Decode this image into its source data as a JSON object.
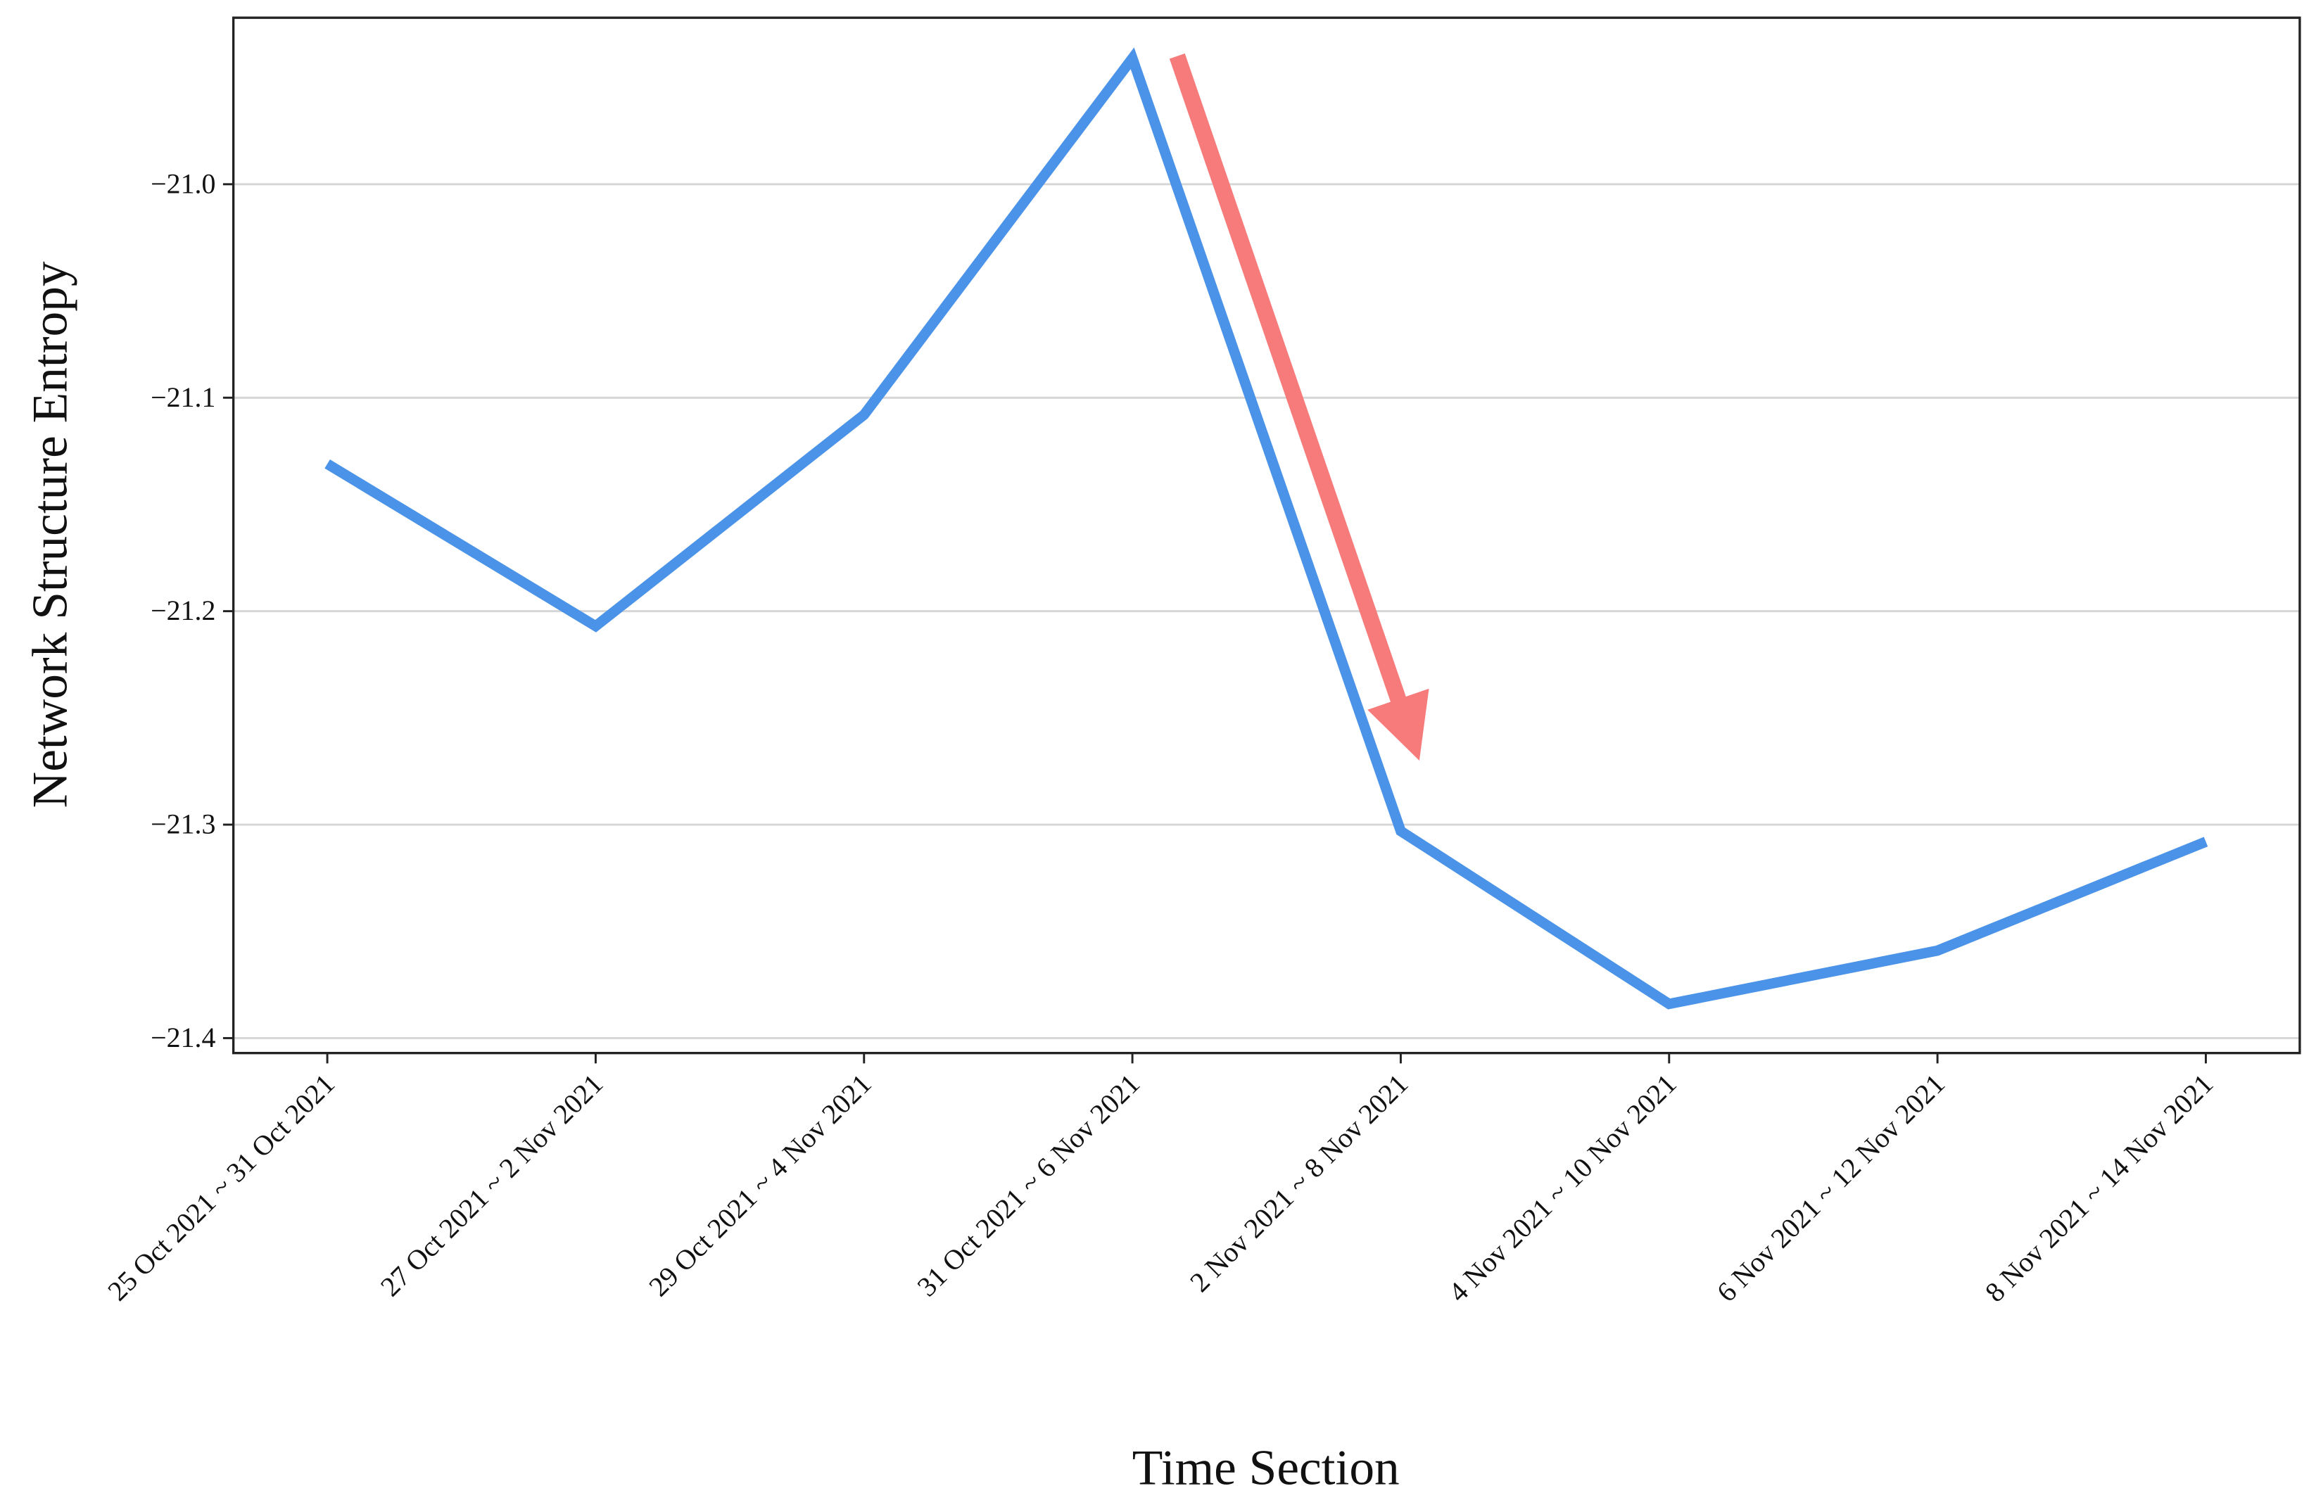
{
  "chart_data": {
    "type": "line",
    "x_label": "Time Section",
    "y_label": "Network Structure Entropy",
    "categories": [
      "25 Oct 2021 ~ 31 Oct 2021",
      "27 Oct 2021 ~ 2 Nov 2021",
      "29 Oct 2021 ~ 4 Nov 2021",
      "31 Oct 2021 ~ 6 Nov 2021",
      "2 Nov 2021 ~ 8 Nov 2021",
      "4 Nov 2021 ~ 10 Nov 2021",
      "6 Nov 2021 ~ 12 Nov 2021",
      "8 Nov 2021 ~ 14 Nov 2021"
    ],
    "series": [
      {
        "name": "Network Structure Entropy",
        "color": "#4a93e8",
        "values": [
          -21.131,
          -21.207,
          -21.108,
          -20.941,
          -21.303,
          -21.384,
          -21.359,
          -21.308
        ]
      }
    ],
    "ylim": [
      -21.407,
      -20.922
    ],
    "yticks": [
      {
        "value": -21.0,
        "label": "−21.0"
      },
      {
        "value": -21.1,
        "label": "−21.1"
      },
      {
        "value": -21.2,
        "label": "−21.2"
      },
      {
        "value": -21.3,
        "label": "−21.3"
      },
      {
        "value": -21.4,
        "label": "−21.4"
      }
    ],
    "grid": true
  }
}
